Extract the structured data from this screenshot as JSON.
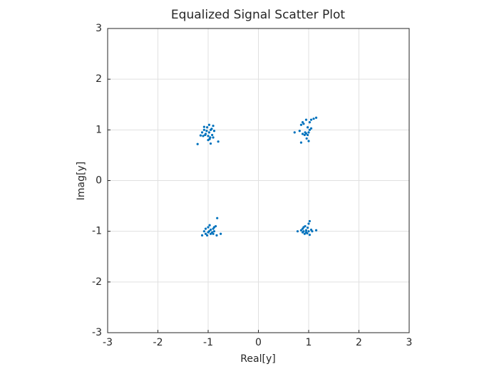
{
  "chart_data": {
    "type": "scatter",
    "title": "Equalized Signal Scatter Plot",
    "x_label": "Real[y]",
    "y_label": "Imag[y]",
    "xlim": [
      -3,
      3
    ],
    "ylim": [
      -3,
      3
    ],
    "xticks": [
      -3,
      -2,
      -1,
      0,
      1,
      2,
      3
    ],
    "yticks": [
      -3,
      -2,
      -1,
      0,
      1,
      2,
      3
    ],
    "grid": true,
    "series": [
      {
        "color": "#0072bd",
        "x": [
          -1.21,
          -1.1,
          -1.05,
          -0.98,
          -0.95,
          -1.02,
          -0.9,
          -1.08,
          -0.96,
          -0.92,
          -1.0,
          -0.95,
          -0.8,
          -1.12,
          -0.88,
          -1.03,
          -0.98,
          -1.06,
          -0.93,
          -1.0,
          -0.9,
          -1.08,
          -0.97,
          -1.15,
          0.72,
          0.82,
          0.85,
          0.88,
          0.92,
          0.95,
          1.0,
          1.02,
          0.9,
          0.85,
          0.95,
          1.05,
          1.1,
          1.15,
          0.98,
          1.0,
          0.96,
          1.05,
          0.88,
          1.02,
          0.93,
          0.98,
          -1.12,
          -1.05,
          -1.0,
          -0.98,
          -0.95,
          -0.9,
          -0.88,
          -0.85,
          -0.82,
          -0.75,
          -0.83,
          -0.92,
          -1.05,
          -1.0,
          -0.95,
          -1.08,
          -0.88,
          -0.97,
          -1.02,
          -0.9,
          0.78,
          0.85,
          0.88,
          0.9,
          0.92,
          0.95,
          0.98,
          1.0,
          1.02,
          1.05,
          1.02,
          1.15,
          0.95,
          0.9,
          1.0,
          0.93,
          1.07,
          0.97,
          0.88
        ],
        "y": [
          0.72,
          0.88,
          0.92,
          0.95,
          1.0,
          1.05,
          1.08,
          1.06,
          0.85,
          0.9,
          0.8,
          0.73,
          0.77,
          0.95,
          0.98,
          0.98,
          1.1,
          0.9,
          1.02,
          0.88,
          0.85,
          1.0,
          0.82,
          0.89,
          0.95,
          0.98,
          0.75,
          0.92,
          0.9,
          0.93,
          0.95,
          1.0,
          1.12,
          1.1,
          1.2,
          1.2,
          1.22,
          1.24,
          1.05,
          0.78,
          0.83,
          1.03,
          1.15,
          1.15,
          0.95,
          0.9,
          -1.08,
          -1.05,
          -1.02,
          -1.0,
          -0.97,
          -0.95,
          -0.92,
          -0.9,
          -0.74,
          -1.05,
          -1.08,
          -1.02,
          -0.95,
          -0.92,
          -1.05,
          -1.0,
          -1.0,
          -0.88,
          -1.08,
          -1.05,
          -1.0,
          -0.98,
          -0.95,
          -1.0,
          -1.05,
          -0.98,
          -0.93,
          -0.85,
          -0.8,
          -0.97,
          -1.07,
          -0.98,
          -1.02,
          -0.92,
          -1.0,
          -0.9,
          -1.0,
          -1.04,
          -1.02
        ]
      }
    ]
  }
}
